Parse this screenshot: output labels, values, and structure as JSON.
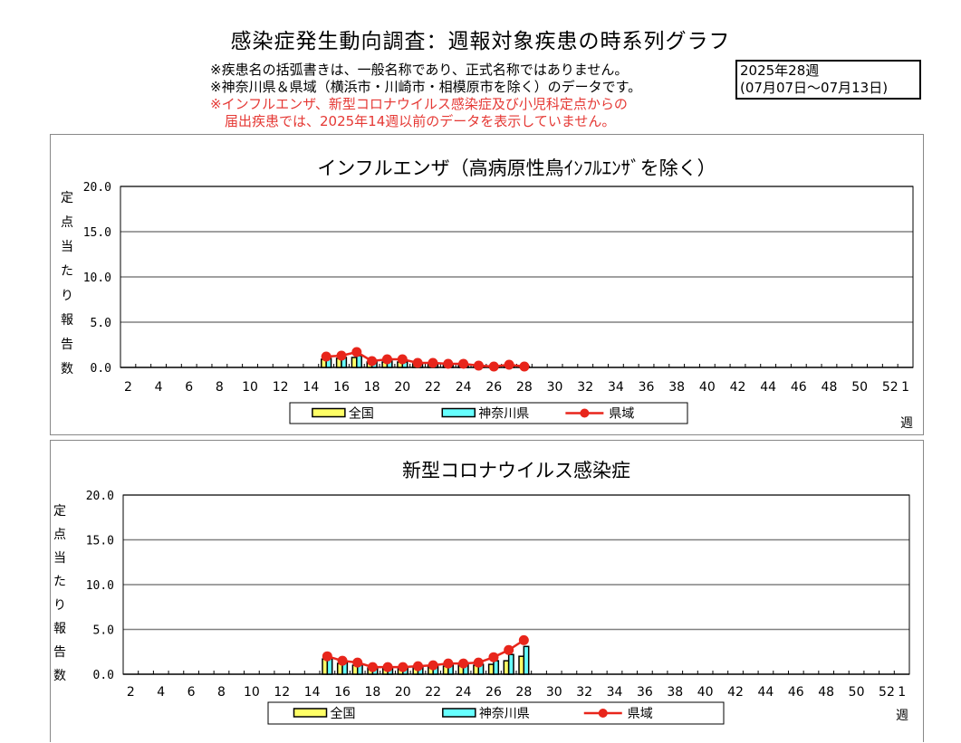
{
  "header": {
    "title": "感染症発生動向調査：週報対象疾患の時系列グラフ",
    "notes": [
      "※疾患名の括弧書きは、一般名称であり、正式名称ではありません。",
      "※神奈川県＆県域（横浜市・川崎市・相模原市を除く）のデータです。"
    ],
    "red_notes": [
      "※インフルエンザ、新型コロナウイルス感染症及び小児科定点からの",
      "届出疾患では、2025年14週以前のデータを表示していません。"
    ],
    "week_box": [
      "2025年28週",
      "(07月07日〜07月13日)"
    ]
  },
  "colors": {
    "zenkoku": "#ffff66",
    "kanagawa": "#66ffff",
    "kenkiki": "#e8251b",
    "grid": "#808080",
    "red_text": "#e53935"
  },
  "chart_data": [
    {
      "type": "bar",
      "title": "インフルエンザ（高病原性鳥ｲﾝﾌﾙｴﾝｻﾞを除く）",
      "ylabel": "定点当たり報告数",
      "xlabel": "週",
      "ylim": [
        0,
        20
      ],
      "y_ticks": [
        "20.0",
        "15.0",
        "10.0",
        "5.0",
        "0.0"
      ],
      "x_weeks": [
        2,
        3,
        4,
        5,
        6,
        7,
        8,
        9,
        10,
        11,
        12,
        13,
        14,
        15,
        16,
        17,
        18,
        19,
        20,
        21,
        22,
        23,
        24,
        25,
        26,
        27,
        28,
        29,
        30,
        31,
        32,
        33,
        34,
        35,
        36,
        37,
        38,
        39,
        40,
        41,
        42,
        43,
        44,
        45,
        46,
        47,
        48,
        49,
        50,
        51,
        52,
        1
      ],
      "x_tick_labels": [
        "2",
        "4",
        "6",
        "8",
        "10",
        "12",
        "14",
        "16",
        "18",
        "20",
        "22",
        "24",
        "26",
        "28",
        "30",
        "32",
        "34",
        "36",
        "38",
        "40",
        "42",
        "44",
        "46",
        "48",
        "50",
        "52",
        "1"
      ],
      "legend": [
        "全国",
        "神奈川県",
        "県域"
      ],
      "series": [
        {
          "name": "全国",
          "kind": "bar",
          "color": "#ffff66",
          "values": [
            null,
            null,
            null,
            null,
            null,
            null,
            null,
            null,
            null,
            null,
            null,
            null,
            null,
            0.9,
            1.0,
            1.1,
            0.6,
            0.6,
            0.6,
            0.4,
            0.4,
            0.3,
            0.3,
            0.2,
            0.1,
            0.1,
            0.1
          ]
        },
        {
          "name": "神奈川県",
          "kind": "bar",
          "color": "#66ffff",
          "values": [
            null,
            null,
            null,
            null,
            null,
            null,
            null,
            null,
            null,
            null,
            null,
            null,
            null,
            1.0,
            1.1,
            1.3,
            0.6,
            0.7,
            0.6,
            0.4,
            0.4,
            0.3,
            0.3,
            0.2,
            0.1,
            0.2,
            0.1
          ]
        },
        {
          "name": "県域",
          "kind": "line",
          "color": "#e8251b",
          "values": [
            null,
            null,
            null,
            null,
            null,
            null,
            null,
            null,
            null,
            null,
            null,
            null,
            null,
            1.2,
            1.3,
            1.7,
            0.7,
            0.9,
            0.9,
            0.5,
            0.5,
            0.4,
            0.4,
            0.2,
            0.1,
            0.3,
            0.1
          ]
        }
      ]
    },
    {
      "type": "bar",
      "title": "新型コロナウイルス感染症",
      "ylabel": "定点当たり報告数",
      "xlabel": "週",
      "ylim": [
        0,
        20
      ],
      "y_ticks": [
        "20.0",
        "15.0",
        "10.0",
        "5.0",
        "0.0"
      ],
      "x_weeks": [
        2,
        3,
        4,
        5,
        6,
        7,
        8,
        9,
        10,
        11,
        12,
        13,
        14,
        15,
        16,
        17,
        18,
        19,
        20,
        21,
        22,
        23,
        24,
        25,
        26,
        27,
        28,
        29,
        30,
        31,
        32,
        33,
        34,
        35,
        36,
        37,
        38,
        39,
        40,
        41,
        42,
        43,
        44,
        45,
        46,
        47,
        48,
        49,
        50,
        51,
        52,
        1
      ],
      "x_tick_labels": [
        "2",
        "4",
        "6",
        "8",
        "10",
        "12",
        "14",
        "16",
        "18",
        "20",
        "22",
        "24",
        "26",
        "28",
        "30",
        "32",
        "34",
        "36",
        "38",
        "40",
        "42",
        "44",
        "46",
        "48",
        "50",
        "52",
        "1"
      ],
      "legend": [
        "全国",
        "神奈川県",
        "県域"
      ],
      "series": [
        {
          "name": "全国",
          "kind": "bar",
          "color": "#ffff66",
          "values": [
            null,
            null,
            null,
            null,
            null,
            null,
            null,
            null,
            null,
            null,
            null,
            null,
            null,
            1.7,
            1.2,
            1.0,
            0.7,
            0.7,
            0.8,
            0.8,
            0.9,
            0.9,
            1.0,
            1.0,
            1.1,
            1.5,
            2.0
          ]
        },
        {
          "name": "神奈川県",
          "kind": "bar",
          "color": "#66ffff",
          "values": [
            null,
            null,
            null,
            null,
            null,
            null,
            null,
            null,
            null,
            null,
            null,
            null,
            null,
            1.8,
            1.4,
            1.1,
            0.7,
            0.7,
            0.8,
            0.9,
            1.0,
            1.0,
            1.1,
            1.1,
            1.5,
            2.2,
            3.1
          ]
        },
        {
          "name": "県域",
          "kind": "line",
          "color": "#e8251b",
          "values": [
            null,
            null,
            null,
            null,
            null,
            null,
            null,
            null,
            null,
            null,
            null,
            null,
            null,
            2.0,
            1.5,
            1.3,
            0.8,
            0.8,
            0.8,
            0.9,
            1.0,
            1.2,
            1.2,
            1.3,
            1.9,
            2.7,
            3.8
          ]
        }
      ]
    }
  ]
}
